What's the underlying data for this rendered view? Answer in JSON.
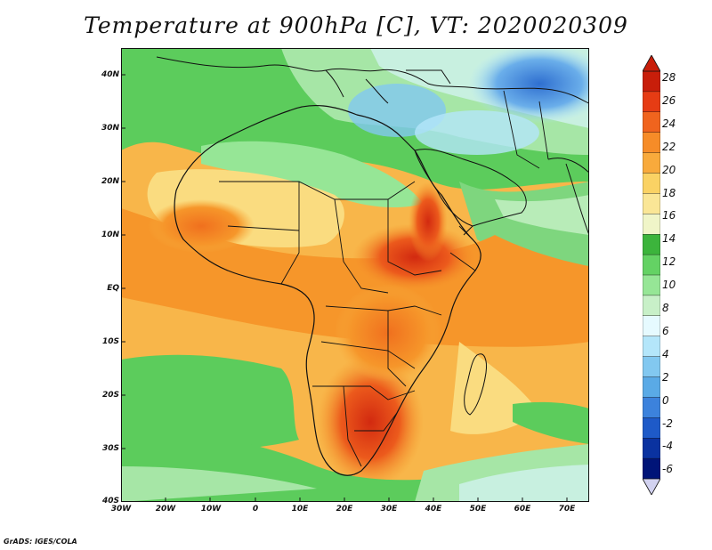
{
  "title": "Temperature at 900hPa [C], VT: 2020020309",
  "credit": "GrADS: IGES/COLA",
  "map": {
    "region": "Africa",
    "lon_range": [
      -30,
      75
    ],
    "lat_range": [
      -40,
      45
    ],
    "lat_labels": [
      "40N",
      "30N",
      "20N",
      "10N",
      "EQ",
      "10S",
      "20S",
      "30S",
      "40S"
    ],
    "lon_labels": [
      "30W",
      "20W",
      "10W",
      "0",
      "10E",
      "20E",
      "30E",
      "40E",
      "50E",
      "60E",
      "70E"
    ]
  },
  "colorbar": {
    "labels": [
      "28",
      "26",
      "24",
      "22",
      "20",
      "18",
      "16",
      "14",
      "12",
      "10",
      "8",
      "6",
      "4",
      "2",
      "0",
      "-2",
      "-4",
      "-6"
    ],
    "colors": [
      "#c81e0a",
      "#e63c14",
      "#f0641e",
      "#f68c28",
      "#f8aa3c",
      "#fad264",
      "#fae696",
      "#f0f5c8",
      "#3cb43c",
      "#64d264",
      "#96e696",
      "#c8f0c8",
      "#e6faff",
      "#b4e6fa",
      "#82c8f0",
      "#5aaae6",
      "#3c82dc",
      "#1e5ac8",
      "#0a32a0",
      "#001478"
    ]
  }
}
